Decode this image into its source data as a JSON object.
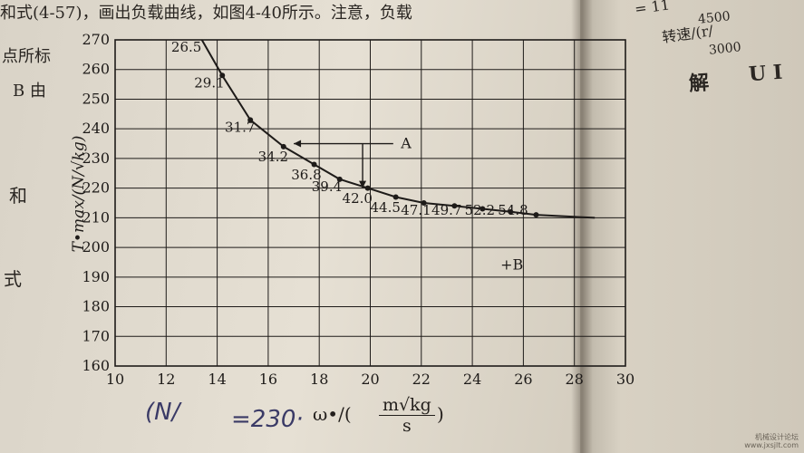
{
  "book": {
    "top_line": "和式(4-57)，画出负载曲线，如图4-40所示。注意，负载",
    "margin_1": "点所标",
    "margin_2": "B 由",
    "margin_3": "和",
    "margin_4": "式",
    "right_page_1": "= 11",
    "right_page_2": "转速/(r/",
    "right_page_3": "4500",
    "right_page_4": "3000",
    "right_page_5": "解",
    "right_page_6": "U I"
  },
  "handwriting": {
    "n_fraction": "(N/",
    "value": "=230·"
  },
  "x_axis_label": {
    "symbol": "ω•/(",
    "numerator": "m√kg",
    "denominator": "s",
    "close": ")"
  },
  "watermark": {
    "line1": "机械设计论坛",
    "line2": "www.jxsjlt.com"
  },
  "chart_data": {
    "type": "line",
    "ylabel": "T•max/(N/√kg)",
    "xlim": [
      10,
      30
    ],
    "ylim": [
      160,
      270
    ],
    "x_ticks": [
      10,
      12,
      14,
      16,
      18,
      20,
      22,
      24,
      26,
      28,
      30
    ],
    "y_ticks": [
      160,
      170,
      180,
      190,
      200,
      210,
      220,
      230,
      240,
      250,
      260,
      270
    ],
    "grid": true,
    "series": [
      {
        "x": [
          13.4,
          14.2,
          15.3,
          16.6,
          17.8,
          18.8,
          19.9,
          21.0,
          22.1,
          23.3,
          24.4,
          25.5,
          26.5,
          28.8
        ],
        "values": [
          270,
          258,
          243,
          234,
          228,
          223,
          220,
          217,
          215,
          214,
          213,
          212,
          211,
          210
        ]
      }
    ],
    "point_labels": [
      {
        "text": "26.5",
        "x": 12.2,
        "y": 266
      },
      {
        "text": "29.1",
        "x": 13.1,
        "y": 254
      },
      {
        "text": "31.7",
        "x": 14.3,
        "y": 239
      },
      {
        "text": "34.2",
        "x": 15.6,
        "y": 229
      },
      {
        "text": "36.8",
        "x": 16.9,
        "y": 223
      },
      {
        "text": "39.4",
        "x": 17.7,
        "y": 219
      },
      {
        "text": "42.0",
        "x": 18.9,
        "y": 215
      },
      {
        "text": "44.5",
        "x": 20.0,
        "y": 212
      },
      {
        "text": "47.1",
        "x": 21.2,
        "y": 211
      },
      {
        "text": "49.7",
        "x": 22.4,
        "y": 211
      },
      {
        "text": "52.2",
        "x": 23.7,
        "y": 211
      },
      {
        "text": "54.8",
        "x": 25.0,
        "y": 211
      }
    ],
    "annotations": [
      {
        "text": "A",
        "x": 21.2,
        "y": 235
      },
      {
        "text": "+B",
        "x": 25.1,
        "y": 194
      }
    ],
    "arrow_a": {
      "from": [
        20.9,
        235
      ],
      "corner": [
        17.0,
        235
      ],
      "drop_x": 19.7,
      "drop_from": 235,
      "drop_to": 220
    }
  }
}
